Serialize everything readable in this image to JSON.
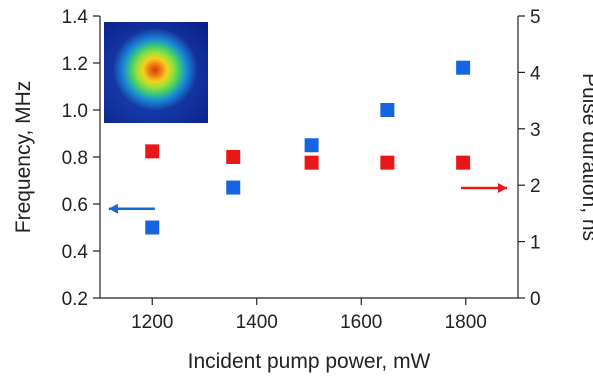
{
  "chart_data": {
    "type": "scatter",
    "title": "",
    "xlabel": "Incident pump power, mW",
    "ylabel_left": "Frequency, MHz",
    "ylabel_right": "Pulse duration, ns",
    "xlim": [
      1100,
      1900
    ],
    "ylim_left": [
      0.2,
      1.4
    ],
    "ylim_right": [
      0,
      5
    ],
    "x_ticks": [
      1200,
      1400,
      1600,
      1800
    ],
    "x_tick_labels": [
      "1200",
      "1400",
      "1600",
      "1800"
    ],
    "y_left_ticks": [
      0.2,
      0.4,
      0.6,
      0.8,
      1.0,
      1.2,
      1.4
    ],
    "y_left_tick_labels": [
      "0.2",
      "0.4",
      "0.6",
      "0.8",
      "1.0",
      "1.2",
      "1.4"
    ],
    "y_right_ticks": [
      0,
      1,
      2,
      3,
      4,
      5
    ],
    "y_right_tick_labels": [
      "0",
      "1",
      "2",
      "3",
      "4",
      "5"
    ],
    "grid": false,
    "legend": "none",
    "series": [
      {
        "axis": "left",
        "color": "#1565e0",
        "marker": "square",
        "x": [
          1200,
          1355,
          1505,
          1650,
          1795
        ],
        "y": [
          0.5,
          0.67,
          0.85,
          1.0,
          1.18
        ]
      },
      {
        "axis": "right",
        "color": "#e81818",
        "marker": "square",
        "x": [
          1200,
          1355,
          1505,
          1650,
          1795
        ],
        "y": [
          2.6,
          2.5,
          2.4,
          2.4,
          2.4
        ]
      }
    ],
    "annotations": [
      {
        "type": "arrow",
        "direction": "left",
        "color": "#1565e0",
        "points_to_axis": "left",
        "x": 1205,
        "y": 0.58
      },
      {
        "type": "arrow",
        "direction": "right",
        "color": "#e81818",
        "points_to_axis": "right",
        "x": 1835,
        "y": 1.95
      }
    ],
    "inset": {
      "content": "beam-profile-image",
      "position": "top-left"
    }
  }
}
